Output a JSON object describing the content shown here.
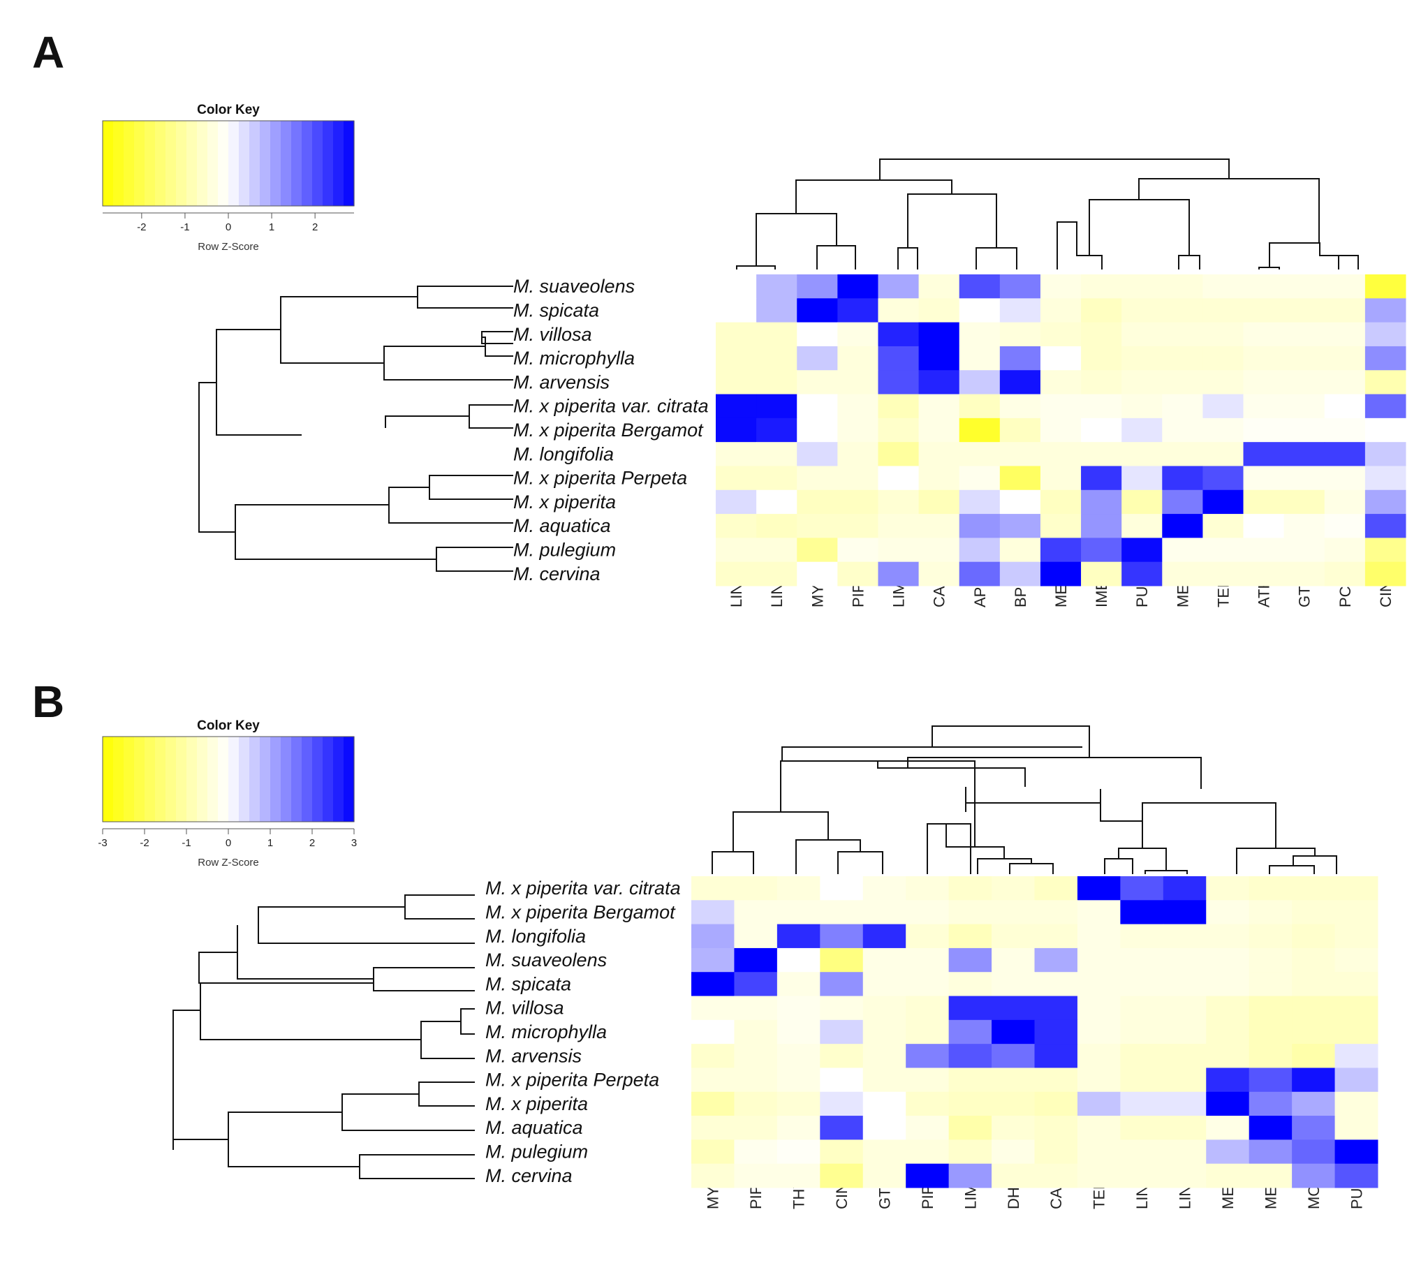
{
  "chart_data": [
    {
      "type": "heatmap",
      "panel_label": "A",
      "color_key": {
        "title": "Color Key",
        "subtitle": "Row Z-Score",
        "ticks": [
          "-2",
          "-1",
          "0",
          "1",
          "2"
        ],
        "tick_values": [
          -2,
          -1,
          0,
          1,
          2
        ],
        "range": [
          -2.9,
          2.9
        ],
        "low_color": "#ffff00",
        "mid_color": "#ffffff",
        "high_color": "#0000ff"
      },
      "rows": [
        "M. suaveolens",
        "M. spicata",
        "M. villosa",
        "M. microphylla",
        "M. arvensis",
        "M. x piperita var. citrata",
        "M. x piperita Bergamot",
        "M. longifolia",
        "M. x piperita Perpeta",
        "M. x piperita",
        "M. aquatica",
        "M. pulegium",
        "M. cervina"
      ],
      "columns": [
        "LIN",
        "LINAC",
        "MYR",
        "PIPOX",
        "LIM",
        "CAR",
        "APIN",
        "BPIN",
        "MEN",
        "IMEN",
        "PUL",
        "MEF",
        "TERP",
        "ATHU",
        "GTERP",
        "PCYM",
        "CIN"
      ],
      "values": [
        [
          0,
          0.8,
          1.2,
          3,
          1,
          -0.4,
          2,
          1.5,
          -0.3,
          -0.4,
          -0.4,
          -0.4,
          -0.3,
          -0.3,
          -0.3,
          -0.3,
          -2.2
        ],
        [
          0,
          0.8,
          3,
          2.5,
          -0.4,
          -0.5,
          0,
          0.3,
          -0.4,
          -0.7,
          -0.5,
          -0.5,
          -0.5,
          -0.5,
          -0.5,
          -0.5,
          1
        ],
        [
          -0.6,
          -0.6,
          0,
          -0.3,
          2.5,
          3,
          -0.3,
          -0.4,
          -0.5,
          -0.6,
          -0.4,
          -0.4,
          -0.4,
          -0.3,
          -0.3,
          -0.3,
          0.6
        ],
        [
          -0.6,
          -0.6,
          0.6,
          -0.4,
          2,
          3,
          -0.3,
          1.5,
          0,
          -0.6,
          -0.5,
          -0.5,
          -0.5,
          -0.4,
          -0.4,
          -0.4,
          1.3
        ],
        [
          -0.6,
          -0.6,
          -0.4,
          -0.4,
          2,
          2.5,
          0.6,
          2.7,
          -0.4,
          -0.5,
          -0.4,
          -0.4,
          -0.4,
          -0.3,
          -0.3,
          -0.3,
          -0.9
        ],
        [
          2.8,
          2.8,
          0,
          -0.3,
          -0.8,
          -0.3,
          -0.7,
          -0.3,
          -0.2,
          -0.2,
          -0.3,
          -0.2,
          0.3,
          -0.2,
          -0.2,
          0,
          1.7
        ],
        [
          2.8,
          2.6,
          0,
          -0.3,
          -0.6,
          -0.3,
          -2.4,
          -0.7,
          -0.2,
          0,
          0.3,
          -0.2,
          -0.2,
          -0.1,
          -0.1,
          -0.1,
          0
        ],
        [
          -0.4,
          -0.4,
          0.4,
          -0.4,
          -1.1,
          -0.4,
          -0.4,
          -0.4,
          -0.4,
          -0.4,
          -0.4,
          -0.4,
          -0.4,
          2.2,
          2.2,
          2.2,
          0.6
        ],
        [
          -0.6,
          -0.6,
          -0.4,
          -0.4,
          0,
          -0.4,
          -0.2,
          -1.8,
          -0.4,
          2.3,
          0.3,
          2.3,
          2,
          -0.2,
          -0.2,
          -0.2,
          0.3
        ],
        [
          0.4,
          0,
          -0.7,
          -0.7,
          -0.5,
          -0.8,
          0.4,
          0,
          -0.7,
          1.2,
          -0.9,
          1.5,
          3,
          -0.7,
          -0.7,
          -0.3,
          1
        ],
        [
          -0.6,
          -0.7,
          -0.6,
          -0.6,
          -0.4,
          -0.4,
          1.2,
          1,
          -0.6,
          1.2,
          -0.4,
          3,
          -0.5,
          0,
          -0.2,
          -0.1,
          2
        ],
        [
          -0.4,
          -0.4,
          -1.2,
          -0.2,
          -0.3,
          -0.3,
          0.6,
          -0.4,
          2.2,
          1.8,
          2.8,
          -0.2,
          -0.2,
          -0.2,
          -0.2,
          -0.3,
          -1.3
        ],
        [
          -0.6,
          -0.6,
          0,
          -0.6,
          1.3,
          -0.4,
          1.7,
          0.6,
          3,
          -0.7,
          2.3,
          -0.4,
          -0.4,
          -0.4,
          -0.4,
          -0.5,
          -1.7
        ]
      ],
      "row_dendrogram": "dendrogram of 13 samples",
      "column_dendrogram": "dendrogram of 17 compounds"
    },
    {
      "type": "heatmap",
      "panel_label": "B",
      "color_key": {
        "title": "Color Key",
        "subtitle": "Row Z-Score",
        "ticks": [
          "-3",
          "-2",
          "-1",
          "0",
          "1",
          "2",
          "3"
        ],
        "tick_values": [
          -3,
          -2,
          -1,
          0,
          1,
          2,
          3
        ],
        "range": [
          -3,
          3
        ],
        "low_color": "#ffff00",
        "mid_color": "#ffffff",
        "high_color": "#0000ff"
      },
      "rows": [
        "M. x piperita var. citrata",
        "M. x piperita Bergamot",
        "M. longifolia",
        "M. suaveolens",
        "M. spicata",
        "M. villosa",
        "M. microphylla",
        "M. arvensis",
        "M. x piperita Perpeta",
        "M. x piperita",
        "M. aquatica",
        "M. pulegium",
        "M. cervina"
      ],
      "columns": [
        "MYR",
        "PIPOX",
        "THY",
        "CIN",
        "GTERP",
        "PIP",
        "LIM",
        "DHC",
        "CAR",
        "TERPAC",
        "LIN",
        "LINAC",
        "MEN",
        "MEF",
        "MON",
        "PUL"
      ],
      "values": [
        [
          -0.5,
          -0.5,
          -0.4,
          0,
          -0.3,
          -0.4,
          -0.6,
          -0.5,
          -0.7,
          3,
          2,
          2.5,
          -0.5,
          -0.6,
          -0.6,
          -0.6
        ],
        [
          0.5,
          -0.3,
          -0.3,
          -0.3,
          -0.3,
          -0.3,
          -0.4,
          -0.4,
          -0.4,
          -0.3,
          3,
          3,
          -0.3,
          -0.4,
          -0.5,
          -0.5
        ],
        [
          1,
          -0.3,
          2.5,
          1.5,
          2.5,
          -0.5,
          -0.8,
          -0.5,
          -0.5,
          -0.3,
          -0.4,
          -0.4,
          -0.4,
          -0.5,
          -0.6,
          -0.5
        ],
        [
          0.9,
          3,
          0,
          -1.5,
          -0.3,
          -0.3,
          1.3,
          -0.3,
          1,
          -0.3,
          -0.3,
          -0.3,
          -0.3,
          -0.4,
          -0.5,
          -0.4
        ],
        [
          3,
          2.2,
          -0.3,
          1.3,
          -0.3,
          -0.3,
          -0.4,
          -0.3,
          -0.3,
          -0.3,
          -0.3,
          -0.3,
          -0.3,
          -0.4,
          -0.5,
          -0.5
        ],
        [
          -0.3,
          -0.3,
          -0.2,
          -0.3,
          -0.4,
          -0.5,
          2.5,
          2.5,
          2.5,
          -0.3,
          -0.4,
          -0.4,
          -0.6,
          -0.8,
          -0.8,
          -0.8
        ],
        [
          0,
          -0.4,
          -0.2,
          0.5,
          -0.4,
          -0.5,
          1.5,
          3,
          2.5,
          -0.3,
          -0.4,
          -0.4,
          -0.6,
          -0.8,
          -0.8,
          -0.8
        ],
        [
          -0.6,
          -0.4,
          -0.3,
          -0.6,
          -0.4,
          1.5,
          2,
          1.7,
          2.5,
          -0.4,
          -0.6,
          -0.6,
          -0.6,
          -0.8,
          -1,
          0.3
        ],
        [
          -0.4,
          -0.4,
          -0.3,
          0,
          -0.4,
          -0.4,
          -0.6,
          -0.6,
          -0.6,
          -0.4,
          -0.6,
          -0.6,
          2.5,
          2,
          2.8,
          0.7
        ],
        [
          -1,
          -0.6,
          -0.5,
          0.3,
          0,
          -0.6,
          -0.7,
          -0.7,
          -0.8,
          0.7,
          0.3,
          0.3,
          3,
          1.5,
          1,
          -0.4
        ],
        [
          -0.5,
          -0.5,
          -0.3,
          2.2,
          0,
          -0.3,
          -1,
          -0.5,
          -0.6,
          -0.4,
          -0.6,
          -0.6,
          -0.3,
          3,
          1.6,
          -0.4
        ],
        [
          -0.8,
          -0.2,
          -0.1,
          -0.7,
          -0.4,
          -0.4,
          -0.6,
          -0.3,
          -0.6,
          -0.4,
          -0.4,
          -0.4,
          0.8,
          1.3,
          1.8,
          3
        ],
        [
          -0.5,
          -0.3,
          -0.3,
          -1.3,
          -0.4,
          3,
          1.2,
          -0.5,
          -0.5,
          -0.4,
          -0.4,
          -0.4,
          -0.5,
          -0.5,
          1.3,
          2
        ]
      ],
      "row_dendrogram": "dendrogram of 13 samples",
      "column_dendrogram": "dendrogram of 16 compounds"
    }
  ]
}
